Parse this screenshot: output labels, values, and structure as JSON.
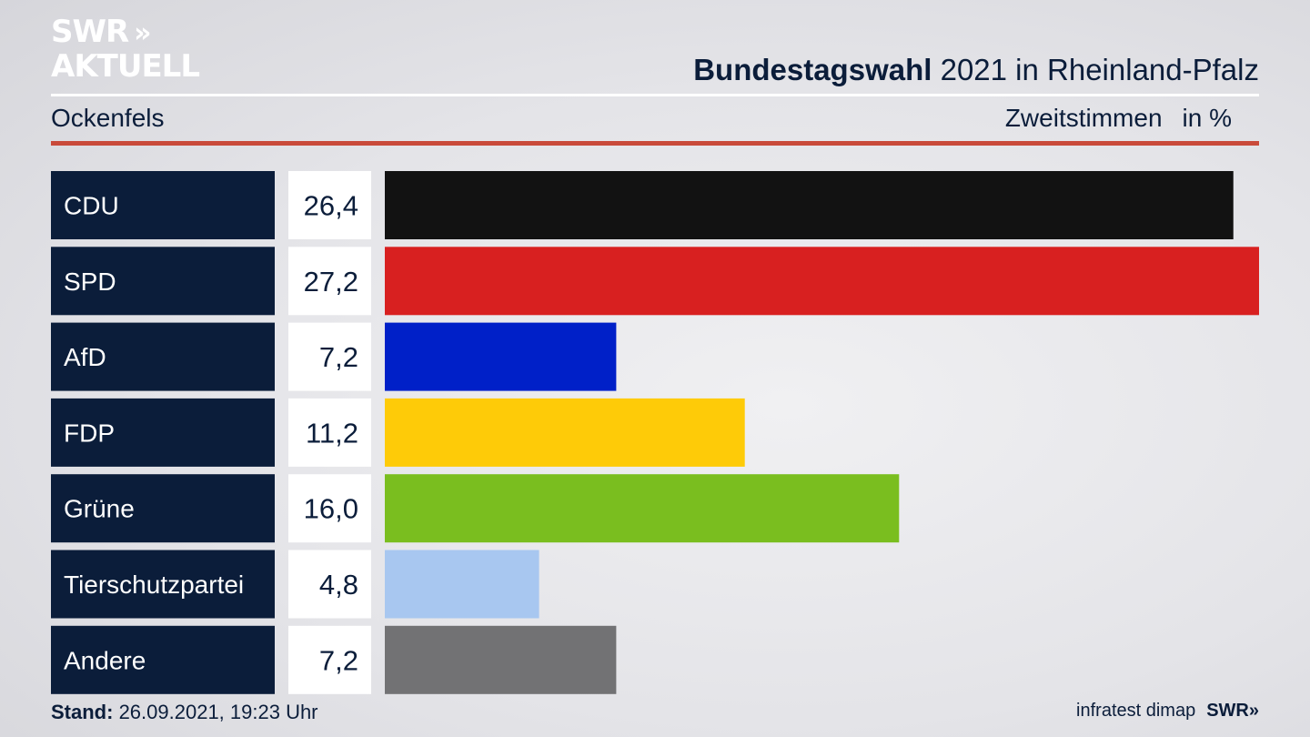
{
  "brand": {
    "line1": "SWR",
    "line2": "AKTUELL",
    "chevrons": "»"
  },
  "header": {
    "title_bold": "Bundestagswahl",
    "title_rest": " 2021 in Rheinland-Pfalz",
    "region": "Ockenfels",
    "metric": "Zweitstimmen",
    "unit": "in %"
  },
  "footer": {
    "stand_label": "Stand:",
    "stand_value": " 26.09.2021, 19:23 Uhr",
    "source": "infratest dimap",
    "source_brand": "SWR»"
  },
  "chart_data": {
    "type": "bar",
    "orientation": "horizontal",
    "categories": [
      "CDU",
      "SPD",
      "AfD",
      "FDP",
      "Grüne",
      "Tierschutzpartei",
      "Andere"
    ],
    "values": [
      26.4,
      27.2,
      7.2,
      11.2,
      16.0,
      4.8,
      7.2
    ],
    "value_labels": [
      "26,4",
      "27,2",
      "7,2",
      "11,2",
      "16,0",
      "4,8",
      "7,2"
    ],
    "colors": [
      "#121212",
      "#d82020",
      "#0020c8",
      "#fecb08",
      "#7abe1f",
      "#a8c7f0",
      "#727274"
    ],
    "xlim": [
      0,
      27.2
    ],
    "label_box_color": "#0b1d3a",
    "value_box_color": "#ffffff"
  }
}
